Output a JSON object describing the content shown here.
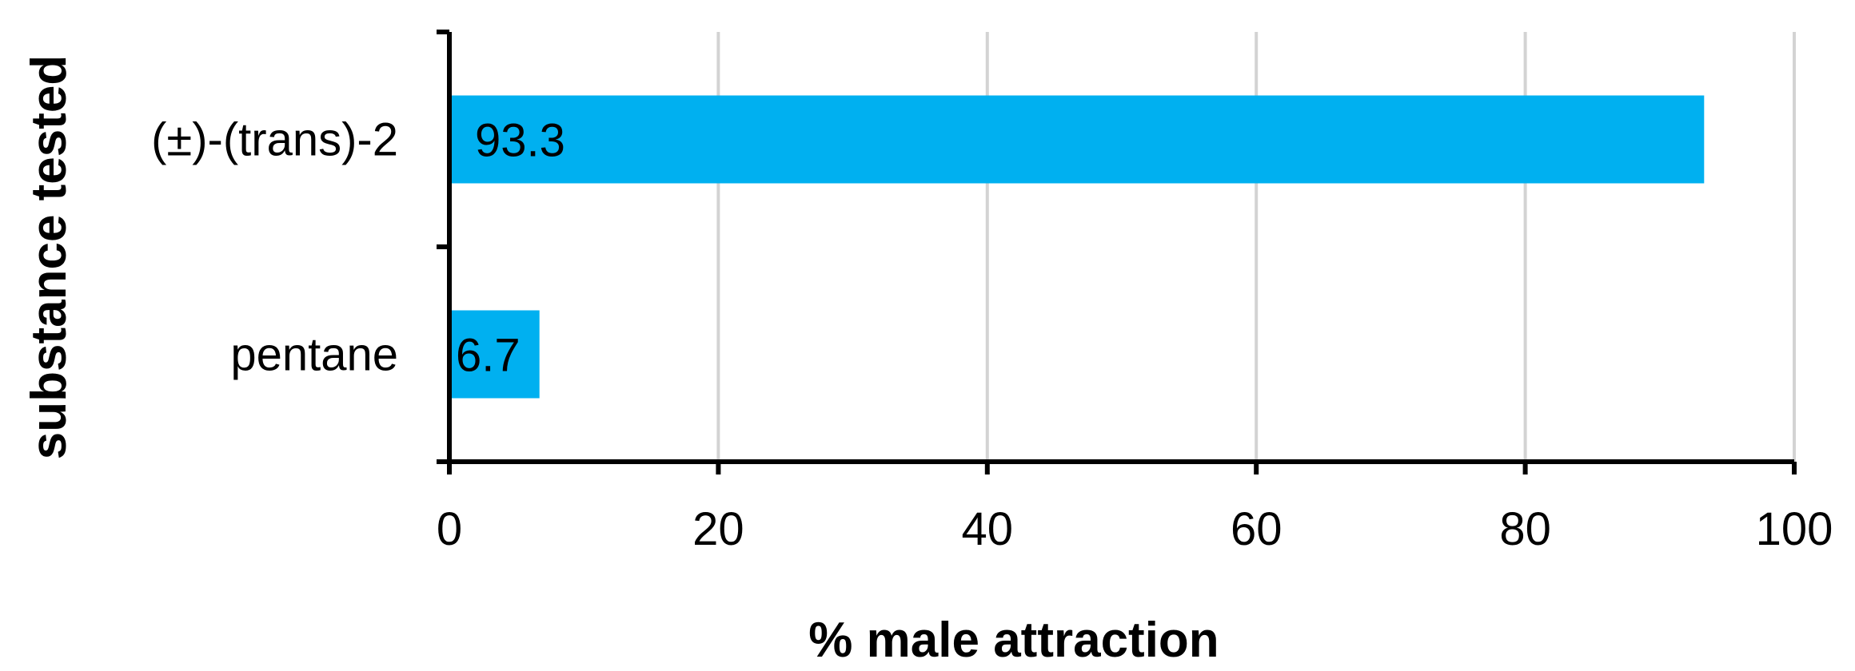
{
  "chart_data": {
    "type": "bar",
    "orientation": "horizontal",
    "categories": [
      "(±)-(trans)-2",
      "pentane"
    ],
    "values": [
      93.3,
      6.7
    ],
    "data_labels": [
      "93.3",
      "6.7"
    ],
    "title": "",
    "xlabel": "% male attraction",
    "ylabel": "substance tested",
    "xlim": [
      0,
      100
    ],
    "xticks": [
      0,
      20,
      40,
      60,
      80,
      100
    ],
    "xtick_labels": [
      "0",
      "20",
      "40",
      "60",
      "80",
      "100"
    ],
    "grid": "vertical",
    "legend": "none",
    "colors": {
      "bar": "#00B0F0",
      "grid": "#D3D3D3",
      "axis": "#000000"
    }
  }
}
